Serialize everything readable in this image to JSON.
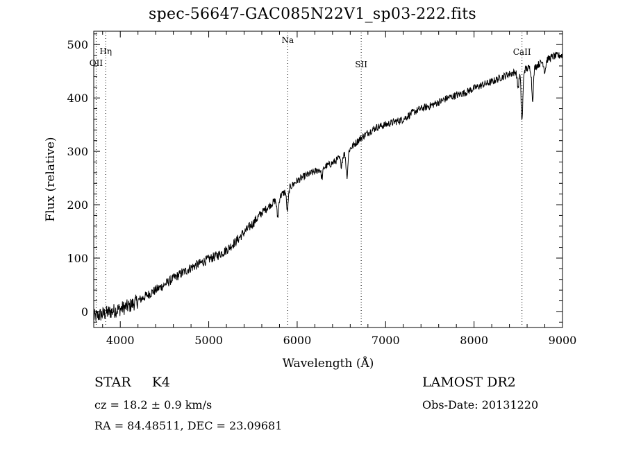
{
  "chart_data": {
    "type": "line",
    "title": "spec-56647-GAC085N22V1_sp03-222.fits",
    "xlabel": "Wavelength (Å)",
    "ylabel": "Flux (relative)",
    "xlim": [
      3700,
      9000
    ],
    "ylim": [
      -30,
      525
    ],
    "xticks": [
      4000,
      5000,
      6000,
      7000,
      8000,
      9000
    ],
    "yticks": [
      0,
      100,
      200,
      300,
      400,
      500
    ],
    "grid": false,
    "legend": "none",
    "line_color": "#000000",
    "series": [
      {
        "x": [
          3700,
          3800,
          3900,
          4000,
          4100,
          4200,
          4300,
          4400,
          4500,
          4600,
          4700,
          4800,
          4900,
          5000,
          5100,
          5200,
          5300,
          5400,
          5500,
          5600,
          5700,
          5800,
          5900,
          6000,
          6100,
          6200,
          6300,
          6400,
          6500,
          6600,
          6700,
          6800,
          6900,
          7000,
          7100,
          7200,
          7300,
          7400,
          7500,
          7600,
          7700,
          7800,
          7900,
          8000,
          8100,
          8200,
          8300,
          8400,
          8500,
          8600,
          8700,
          8800,
          8900,
          9000
        ],
        "y": [
          -10,
          -5,
          0,
          5,
          10,
          20,
          30,
          40,
          50,
          62,
          72,
          82,
          90,
          98,
          105,
          115,
          130,
          148,
          165,
          185,
          200,
          215,
          230,
          245,
          255,
          262,
          270,
          278,
          290,
          305,
          322,
          335,
          345,
          350,
          355,
          360,
          372,
          380,
          385,
          392,
          400,
          405,
          410,
          418,
          425,
          430,
          438,
          445,
          450,
          455,
          460,
          470,
          478,
          480
        ]
      }
    ],
    "absorption_features": [
      {
        "x": 5780,
        "depth": 35
      },
      {
        "x": 5890,
        "depth": 40
      },
      {
        "x": 6280,
        "depth": 18
      },
      {
        "x": 6563,
        "depth": 45
      },
      {
        "x": 6500,
        "depth": 15
      },
      {
        "x": 8498,
        "depth": 30
      },
      {
        "x": 8542,
        "depth": 95
      },
      {
        "x": 8662,
        "depth": 60
      },
      {
        "x": 8800,
        "depth": 20
      }
    ],
    "line_markers": [
      {
        "label": "OII",
        "x": 3727
      },
      {
        "label": "Hη",
        "x": 3835
      },
      {
        "label": "Na",
        "x": 5893
      },
      {
        "label": "SII",
        "x": 6724
      },
      {
        "label": "CaII",
        "x": 8542
      }
    ]
  },
  "info": {
    "class": "STAR",
    "subclass": "K4",
    "cz": "cz = 18.2 ± 0.9 km/s",
    "coords": "RA =  84.48511, DEC =  23.09681",
    "survey": "LAMOST DR2",
    "obs_date": "Obs-Date: 20131220"
  }
}
